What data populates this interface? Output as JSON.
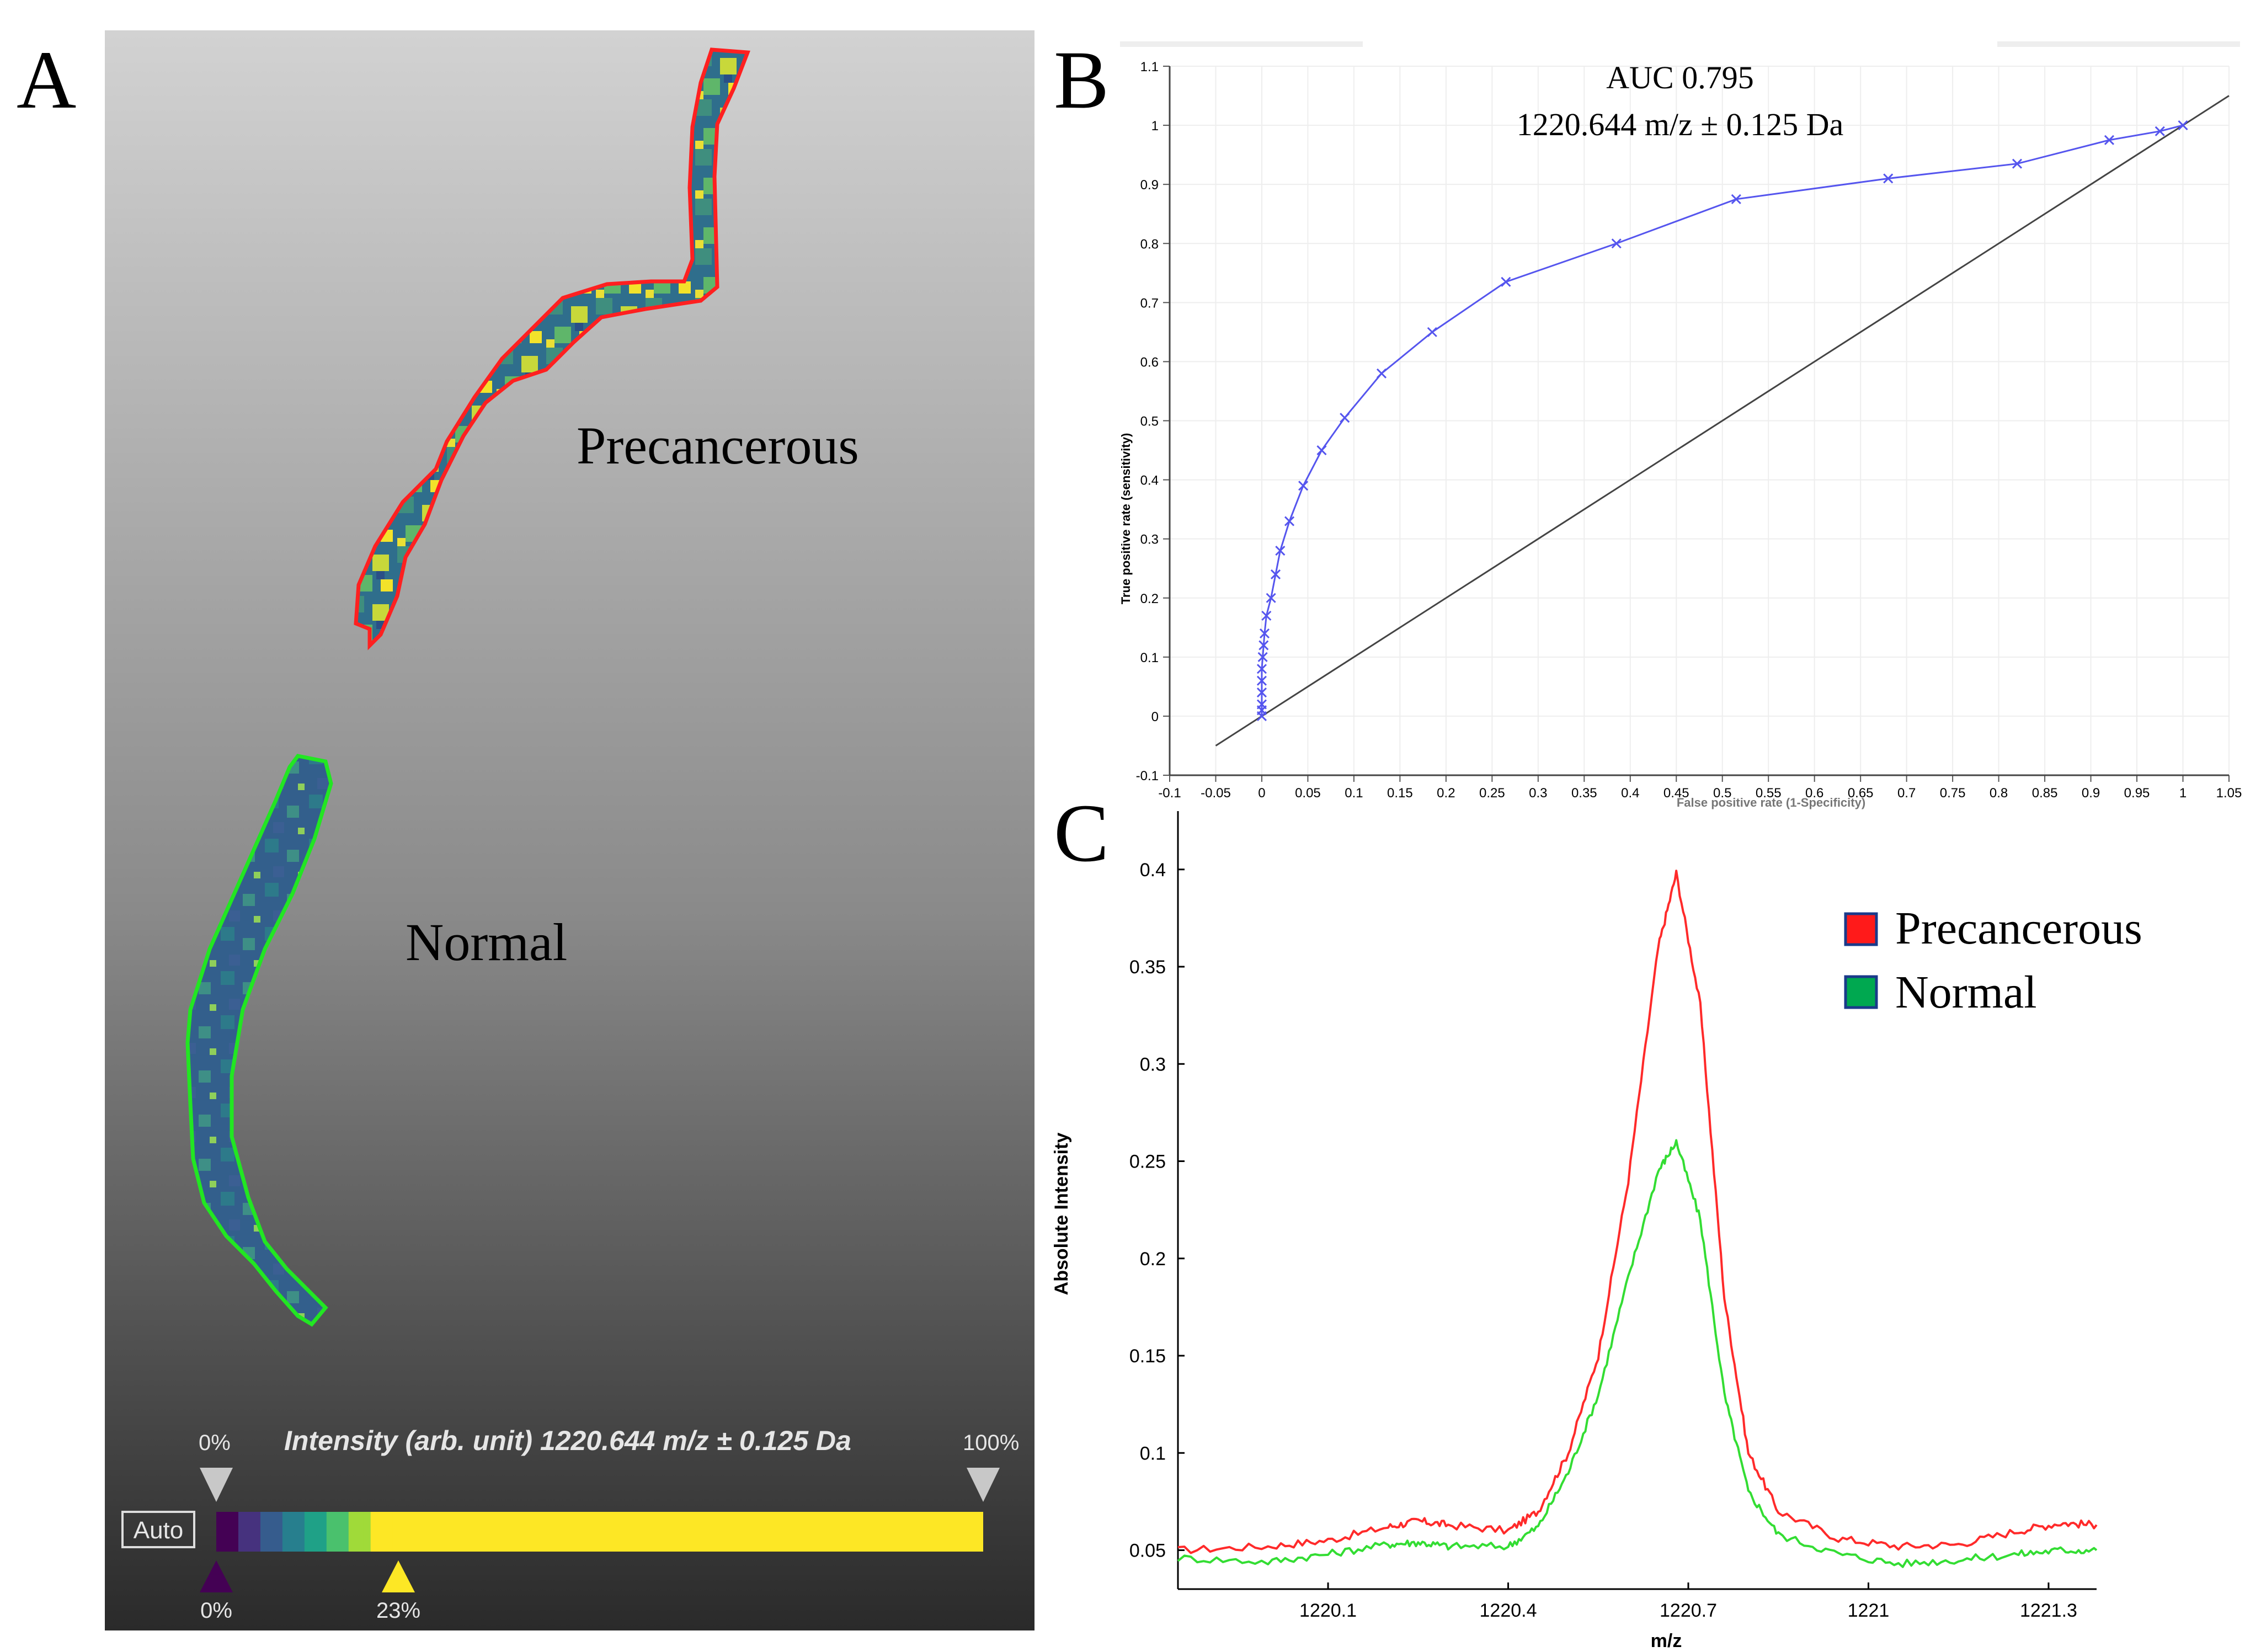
{
  "panels": {
    "a_label": "A",
    "b_label": "B",
    "c_label": "C"
  },
  "panel_a": {
    "region_precancerous": "Precancerous",
    "region_normal": "Normal",
    "colorbar_title": "Intensity (arb. unit) 1220.644 m/z ± 0.125  Da",
    "auto_button": "Auto",
    "marker_top_left": "0%",
    "marker_top_right": "100%",
    "marker_bottom_left": "0%",
    "marker_bottom_mid": "23%",
    "colorbar_threshold": 0.23,
    "outline_colors": {
      "precancerous": "#ff2020",
      "normal": "#22e622"
    },
    "viridis_colors": [
      "#440154",
      "#46327e",
      "#365c8d",
      "#277f8e",
      "#1fa187",
      "#4ac16d",
      "#a0da39",
      "#fde725"
    ]
  },
  "chart_data": [
    {
      "type": "line",
      "panel": "B",
      "title_line1": "AUC 0.795",
      "title_line2": "1220.644  m/z ± 0.125 Da",
      "ylabel": "True positive rate (sensitivity)",
      "xlabel": "False positive rate (1-Specificity)",
      "xlim": [
        -0.1,
        1.05
      ],
      "ylim": [
        -0.1,
        1.1
      ],
      "xticks": [
        "-0.1",
        "-0.05",
        "0",
        "0.05",
        "0.1",
        "0.15",
        "0.2",
        "0.25",
        "0.3",
        "0.35",
        "0.4",
        "0.45",
        "0.5",
        "0.55",
        "0.6",
        "0.65",
        "0.7",
        "0.75",
        "0.8",
        "0.85",
        "0.9",
        "0.95",
        "1",
        "1.05"
      ],
      "yticks": [
        "-0.1",
        "0",
        "0.1",
        "0.2",
        "0.3",
        "0.4",
        "0.5",
        "0.6",
        "0.7",
        "0.8",
        "0.9",
        "1",
        "1.1"
      ],
      "series": [
        {
          "name": "ROC",
          "color": "#5555ee",
          "x": [
            0,
            0,
            0,
            0,
            0,
            0,
            0.001,
            0.002,
            0.003,
            0.005,
            0.01,
            0.015,
            0.02,
            0.03,
            0.045,
            0.065,
            0.09,
            0.13,
            0.185,
            0.265,
            0.385,
            0.515,
            0.68,
            0.82,
            0.92,
            0.975,
            1
          ],
          "y": [
            0,
            0.01,
            0.02,
            0.04,
            0.06,
            0.08,
            0.1,
            0.12,
            0.14,
            0.17,
            0.2,
            0.24,
            0.28,
            0.33,
            0.39,
            0.45,
            0.505,
            0.58,
            0.65,
            0.735,
            0.8,
            0.875,
            0.91,
            0.935,
            0.975,
            0.99,
            1
          ]
        },
        {
          "name": "Reference",
          "color": "#444444",
          "x": [
            -0.05,
            1.05
          ],
          "y": [
            -0.05,
            1.05
          ]
        }
      ]
    },
    {
      "type": "line",
      "panel": "C",
      "ylabel": "Absolute Intensity",
      "xlabel": "m/z",
      "xlim": [
        1219.85,
        1221.38
      ],
      "ylim": [
        0.03,
        0.43
      ],
      "xticks": [
        "1220.1",
        "1220.4",
        "1220.7",
        "1221",
        "1221.3"
      ],
      "yticks": [
        "0.05",
        "0.1",
        "0.15",
        "0.2",
        "0.25",
        "0.3",
        "0.35",
        "0.4"
      ],
      "legend": [
        "Precancerous",
        "Normal"
      ],
      "legend_position": "top-right",
      "series": [
        {
          "name": "Precancerous",
          "color": "#ff2a2a",
          "x": [
            1219.85,
            1220.0,
            1220.1,
            1220.2,
            1220.25,
            1220.3,
            1220.4,
            1220.45,
            1220.5,
            1220.55,
            1220.6,
            1220.65,
            1220.68,
            1220.72,
            1220.76,
            1220.8,
            1220.85,
            1220.95,
            1221.05,
            1221.15,
            1221.25,
            1221.32,
            1221.38
          ],
          "y": [
            0.05,
            0.052,
            0.055,
            0.062,
            0.065,
            0.063,
            0.06,
            0.07,
            0.1,
            0.15,
            0.24,
            0.36,
            0.398,
            0.33,
            0.18,
            0.1,
            0.07,
            0.056,
            0.052,
            0.053,
            0.06,
            0.064,
            0.063
          ]
        },
        {
          "name": "Normal",
          "color": "#33dd33",
          "x": [
            1219.85,
            1220.0,
            1220.1,
            1220.2,
            1220.25,
            1220.3,
            1220.4,
            1220.45,
            1220.5,
            1220.55,
            1220.6,
            1220.65,
            1220.68,
            1220.72,
            1220.76,
            1220.8,
            1220.85,
            1220.95,
            1221.05,
            1221.15,
            1221.25,
            1221.32,
            1221.38
          ],
          "y": [
            0.046,
            0.044,
            0.048,
            0.053,
            0.054,
            0.052,
            0.052,
            0.062,
            0.09,
            0.13,
            0.19,
            0.245,
            0.26,
            0.22,
            0.13,
            0.08,
            0.058,
            0.048,
            0.043,
            0.045,
            0.048,
            0.05,
            0.05
          ]
        }
      ]
    }
  ]
}
